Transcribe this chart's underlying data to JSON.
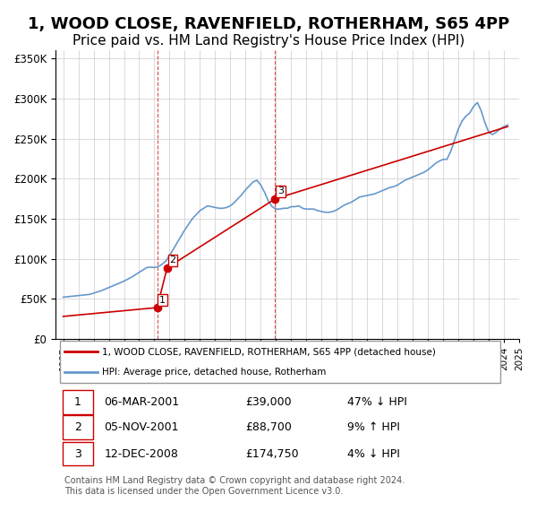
{
  "title": "1, WOOD CLOSE, RAVENFIELD, ROTHERHAM, S65 4PP",
  "subtitle": "Price paid vs. HM Land Registry's House Price Index (HPI)",
  "title_fontsize": 13,
  "subtitle_fontsize": 11,
  "hpi_line_color": "#6699cc",
  "price_line_color": "#cc0000",
  "background_color": "#ffffff",
  "grid_color": "#cccccc",
  "ylim": [
    0,
    360000
  ],
  "yticks": [
    0,
    50000,
    100000,
    150000,
    200000,
    250000,
    300000,
    350000
  ],
  "ylabel_format": "£{0}K",
  "transactions": [
    {
      "date_num": 2001.18,
      "price": 39000,
      "label": "1"
    },
    {
      "date_num": 2001.84,
      "price": 88700,
      "label": "2"
    },
    {
      "date_num": 2008.95,
      "price": 174750,
      "label": "3"
    }
  ],
  "vline_dates": [
    2001.18,
    2008.95
  ],
  "legend_entries": [
    "1, WOOD CLOSE, RAVENFIELD, ROTHERHAM, S65 4PP (detached house)",
    "HPI: Average price, detached house, Rotherham"
  ],
  "table_rows": [
    {
      "num": "1",
      "date": "06-MAR-2001",
      "price": "£39,000",
      "hpi": "47% ↓ HPI"
    },
    {
      "num": "2",
      "date": "05-NOV-2001",
      "price": "£88,700",
      "hpi": "9% ↑ HPI"
    },
    {
      "num": "3",
      "date": "12-DEC-2008",
      "price": "£174,750",
      "hpi": "4% ↓ HPI"
    }
  ],
  "footer_text": "Contains HM Land Registry data © Crown copyright and database right 2024.\nThis data is licensed under the Open Government Licence v3.0.",
  "hpi_data_x": [
    1995.0,
    1995.25,
    1995.5,
    1995.75,
    1996.0,
    1996.25,
    1996.5,
    1996.75,
    1997.0,
    1997.25,
    1997.5,
    1997.75,
    1998.0,
    1998.25,
    1998.5,
    1998.75,
    1999.0,
    1999.25,
    1999.5,
    1999.75,
    2000.0,
    2000.25,
    2000.5,
    2000.75,
    2001.0,
    2001.25,
    2001.5,
    2001.75,
    2002.0,
    2002.25,
    2002.5,
    2002.75,
    2003.0,
    2003.25,
    2003.5,
    2003.75,
    2004.0,
    2004.25,
    2004.5,
    2004.75,
    2005.0,
    2005.25,
    2005.5,
    2005.75,
    2006.0,
    2006.25,
    2006.5,
    2006.75,
    2007.0,
    2007.25,
    2007.5,
    2007.75,
    2008.0,
    2008.25,
    2008.5,
    2008.75,
    2009.0,
    2009.25,
    2009.5,
    2009.75,
    2010.0,
    2010.25,
    2010.5,
    2010.75,
    2011.0,
    2011.25,
    2011.5,
    2011.75,
    2012.0,
    2012.25,
    2012.5,
    2012.75,
    2013.0,
    2013.25,
    2013.5,
    2013.75,
    2014.0,
    2014.25,
    2014.5,
    2014.75,
    2015.0,
    2015.25,
    2015.5,
    2015.75,
    2016.0,
    2016.25,
    2016.5,
    2016.75,
    2017.0,
    2017.25,
    2017.5,
    2017.75,
    2018.0,
    2018.25,
    2018.5,
    2018.75,
    2019.0,
    2019.25,
    2019.5,
    2019.75,
    2020.0,
    2020.25,
    2020.5,
    2020.75,
    2021.0,
    2021.25,
    2021.5,
    2021.75,
    2022.0,
    2022.25,
    2022.5,
    2022.75,
    2023.0,
    2023.25,
    2023.5,
    2023.75,
    2024.0,
    2024.25
  ],
  "hpi_data_y": [
    52000,
    52500,
    53000,
    53500,
    54000,
    54500,
    55000,
    55500,
    57000,
    58500,
    60000,
    62000,
    64000,
    66000,
    68000,
    70000,
    72000,
    74500,
    77000,
    80000,
    83000,
    86000,
    89000,
    89500,
    89000,
    90000,
    93000,
    97000,
    104000,
    112000,
    120000,
    128000,
    136000,
    143000,
    150000,
    155000,
    160000,
    163000,
    166000,
    165000,
    164000,
    163000,
    163000,
    164000,
    166000,
    170000,
    175000,
    180000,
    186000,
    191000,
    196000,
    198000,
    192000,
    183000,
    172000,
    165000,
    162000,
    162000,
    163000,
    163000,
    165000,
    165000,
    166000,
    163000,
    162000,
    162000,
    162000,
    160000,
    159000,
    158000,
    158000,
    159000,
    161000,
    164000,
    167000,
    169000,
    171000,
    174000,
    177000,
    178000,
    179000,
    180000,
    181000,
    183000,
    185000,
    187000,
    189000,
    190000,
    192000,
    195000,
    198000,
    200000,
    202000,
    204000,
    206000,
    208000,
    211000,
    215000,
    219000,
    222000,
    224000,
    224000,
    234000,
    248000,
    262000,
    272000,
    278000,
    282000,
    290000,
    295000,
    285000,
    270000,
    258000,
    255000,
    258000,
    262000,
    265000,
    267000
  ],
  "price_data_x": [
    1995.0,
    2001.18,
    2001.84,
    2008.95,
    2024.25
  ],
  "price_data_y_approx": [
    28000,
    39000,
    88700,
    174750,
    265000
  ]
}
